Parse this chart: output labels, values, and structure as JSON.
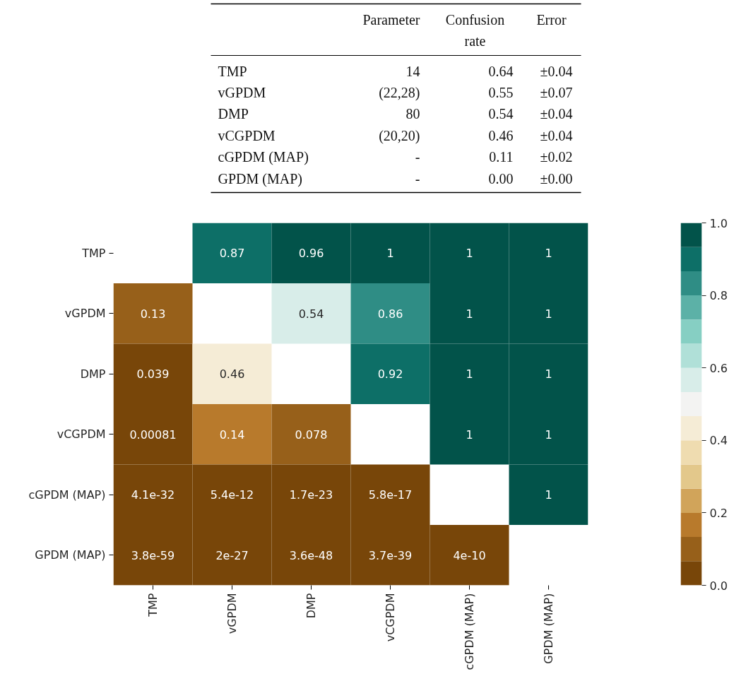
{
  "chart_data": [
    {
      "type": "other",
      "categories": [
        "TMP",
        "vGPDM",
        "DMP",
        "vCGPDM",
        "cGPDM (MAP)",
        "GPDM (MAP)"
      ],
      "annotations": [
        "Parameter",
        "Confusion rate",
        "Error",
        "14",
        "0.64",
        "±0.04",
        "(22,28)",
        "0.55",
        "±0.07",
        "80",
        "0.54",
        "±0.04",
        "(20,20)",
        "0.46",
        "±0.04",
        "-",
        "0.11",
        "±0.02",
        "-",
        "0.00",
        "±0.00"
      ]
    },
    {
      "type": "heatmap",
      "categories": [
        "TMP",
        "vGPDM",
        "DMP",
        "vCGPDM",
        "cGPDM (MAP)",
        "GPDM (MAP)"
      ],
      "y_categories": [
        "TMP",
        "vGPDM",
        "DMP",
        "vCGPDM",
        "cGPDM (MAP)",
        "GPDM (MAP)"
      ],
      "cells": [
        [
          null,
          0.87,
          0.96,
          1,
          1,
          1
        ],
        [
          0.13,
          null,
          0.54,
          0.86,
          1,
          1
        ],
        [
          0.039,
          0.46,
          null,
          0.92,
          1,
          1
        ],
        [
          0.00081,
          0.14,
          0.078,
          null,
          1,
          1
        ],
        [
          4.1e-32,
          5.4e-12,
          1.7e-23,
          5.8e-17,
          null,
          1
        ],
        [
          3.8e-59,
          2e-27,
          3.6e-48,
          3.7e-39,
          4e-10,
          null
        ]
      ],
      "clim": [
        0,
        1
      ],
      "cticks": [
        {
          "value": 0,
          "label": "0.0"
        },
        {
          "value": 0.2,
          "label": "0.2"
        },
        {
          "value": 0.4,
          "label": "0.4"
        },
        {
          "value": 0.6,
          "label": "0.6"
        },
        {
          "value": 0.8,
          "label": "0.8"
        },
        {
          "value": 1,
          "label": "1.0"
        }
      ],
      "data_labels": true
    }
  ]
}
